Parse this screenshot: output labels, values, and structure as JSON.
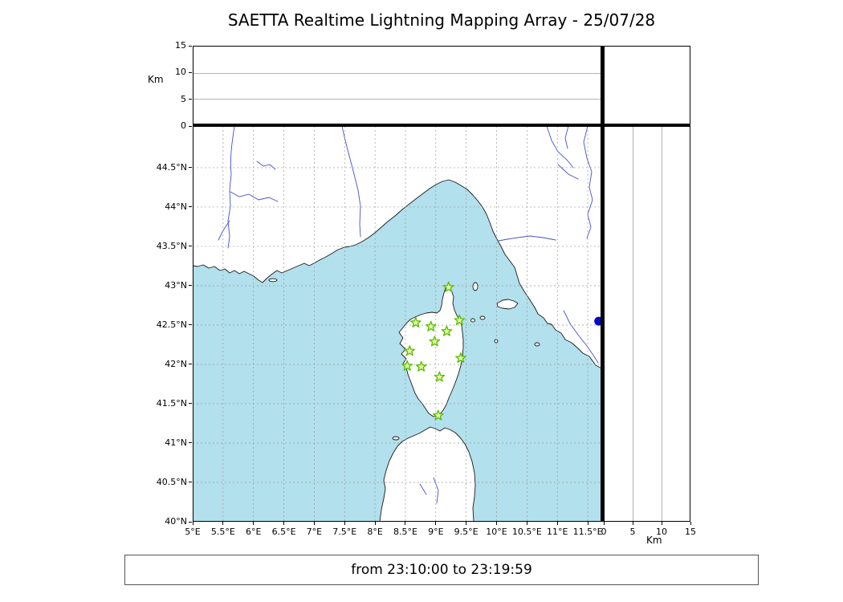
{
  "title": "SAETTA Realtime Lightning Mapping Array - 25/07/28",
  "footer_text": "from 23:10:00 to 23:19:59",
  "axis": {
    "km_label_top": "Km",
    "km_label_right": "Km",
    "alt_ticks_top": [
      "15",
      "10",
      "5",
      "0"
    ],
    "alt_ticks_right": [
      "0",
      "5",
      "10",
      "15"
    ],
    "lon_ticks": [
      "5°E",
      "5.5°E",
      "6°E",
      "6.5°E",
      "7°E",
      "7.5°E",
      "8°E",
      "8.5°E",
      "9°E",
      "9.5°E",
      "10°E",
      "10.5°E",
      "11°E",
      "11.5°E"
    ],
    "lat_ticks": [
      "44.5°N",
      "44°N",
      "43.5°N",
      "43°N",
      "42.5°N",
      "42°N",
      "41.5°N",
      "41°N",
      "40.5°N",
      "40°N"
    ]
  },
  "chart_data": {
    "type": "scatter",
    "title": "SAETTA Realtime Lightning Mapping Array - 25/07/28",
    "time_range": "from 23:10:00 to 23:19:59",
    "layout": "geographic map (lon/lat) with altitude side panel (right) and altitude top panel, plus empty corner panel",
    "xlim_lon": [
      5.0,
      11.75
    ],
    "ylim_lat": [
      40.0,
      45.0
    ],
    "alt_panel_range_km": [
      0,
      15
    ],
    "alt_panel_tick_km": [
      0,
      5,
      10,
      15
    ],
    "alt_panel_gridlines_km": [
      5,
      10
    ],
    "grid": "0.5-degree dashed graticule",
    "region": "Corsica, Ligurian Sea, SE France, NW Italy, N Sardinia",
    "series": [
      {
        "name": "lma-stations",
        "marker": "star",
        "color": "#55bd00",
        "points_lonlat": [
          [
            9.21,
            42.98
          ],
          [
            8.67,
            42.53
          ],
          [
            8.92,
            42.48
          ],
          [
            9.39,
            42.56
          ],
          [
            9.18,
            42.42
          ],
          [
            8.98,
            42.29
          ],
          [
            8.57,
            42.17
          ],
          [
            9.41,
            42.08
          ],
          [
            8.53,
            41.98
          ],
          [
            8.76,
            41.97
          ],
          [
            9.06,
            41.84
          ],
          [
            9.04,
            41.35
          ]
        ]
      },
      {
        "name": "detection-point",
        "marker": "circle",
        "color": "#0008c8",
        "points_lonlat": [
          [
            11.68,
            42.55
          ]
        ]
      }
    ]
  },
  "colors": {
    "sea": "#b2e0ec",
    "land": "#ffffff",
    "coastline": "#1a1a1a",
    "river": "#4550c8",
    "grid_dash": "#999999",
    "star_edge": "#55bd00",
    "star_fill": "#e9f9a2",
    "point_fill": "#0008c8"
  }
}
